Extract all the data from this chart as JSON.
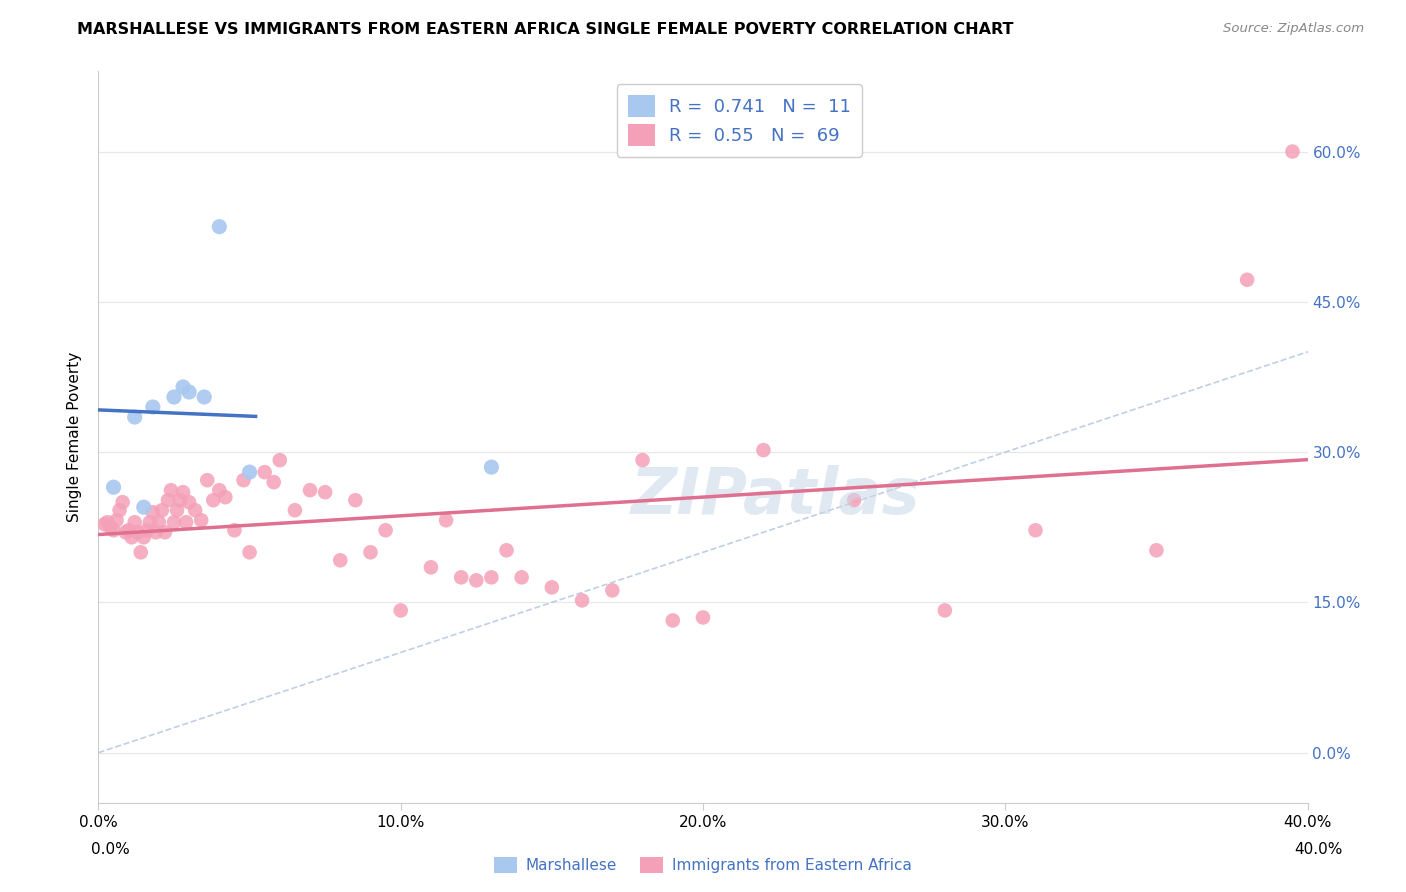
{
  "title": "MARSHALLESE VS IMMIGRANTS FROM EASTERN AFRICA SINGLE FEMALE POVERTY CORRELATION CHART",
  "source": "Source: ZipAtlas.com",
  "ylabel": "Single Female Poverty",
  "xlim": [
    0.0,
    0.4
  ],
  "ylim": [
    -0.05,
    0.68
  ],
  "yticks": [
    0.0,
    0.15,
    0.3,
    0.45,
    0.6
  ],
  "xticks": [
    0.0,
    0.1,
    0.2,
    0.3,
    0.4
  ],
  "marshallese_R": 0.741,
  "marshallese_N": 11,
  "eastern_africa_R": 0.55,
  "eastern_africa_N": 69,
  "marshallese_color": "#a8c8f0",
  "eastern_africa_color": "#f4a0b8",
  "marshallese_line_color": "#4472c4",
  "eastern_africa_line_color": "#e07090",
  "diagonal_color": "#b0c4de",
  "legend_text_color": "#4472c4",
  "right_axis_color": "#4472c4",
  "marshallese_x": [
    0.005,
    0.012,
    0.015,
    0.018,
    0.025,
    0.028,
    0.03,
    0.035,
    0.04,
    0.05,
    0.13
  ],
  "marshallese_y": [
    0.265,
    0.335,
    0.245,
    0.345,
    0.355,
    0.365,
    0.36,
    0.355,
    0.525,
    0.28,
    0.285
  ],
  "eastern_africa_x": [
    0.002,
    0.003,
    0.004,
    0.005,
    0.006,
    0.007,
    0.008,
    0.009,
    0.01,
    0.011,
    0.012,
    0.013,
    0.014,
    0.015,
    0.016,
    0.017,
    0.018,
    0.019,
    0.02,
    0.021,
    0.022,
    0.023,
    0.024,
    0.025,
    0.026,
    0.027,
    0.028,
    0.029,
    0.03,
    0.032,
    0.034,
    0.036,
    0.038,
    0.04,
    0.042,
    0.045,
    0.048,
    0.05,
    0.055,
    0.058,
    0.06,
    0.065,
    0.07,
    0.075,
    0.08,
    0.085,
    0.09,
    0.095,
    0.1,
    0.11,
    0.115,
    0.12,
    0.125,
    0.13,
    0.135,
    0.14,
    0.15,
    0.16,
    0.17,
    0.18,
    0.19,
    0.2,
    0.22,
    0.25,
    0.28,
    0.31,
    0.35,
    0.38,
    0.395
  ],
  "eastern_africa_y": [
    0.228,
    0.23,
    0.225,
    0.222,
    0.232,
    0.242,
    0.25,
    0.22,
    0.222,
    0.215,
    0.23,
    0.22,
    0.2,
    0.215,
    0.222,
    0.23,
    0.24,
    0.22,
    0.23,
    0.242,
    0.22,
    0.252,
    0.262,
    0.23,
    0.242,
    0.252,
    0.26,
    0.23,
    0.25,
    0.242,
    0.232,
    0.272,
    0.252,
    0.262,
    0.255,
    0.222,
    0.272,
    0.2,
    0.28,
    0.27,
    0.292,
    0.242,
    0.262,
    0.26,
    0.192,
    0.252,
    0.2,
    0.222,
    0.142,
    0.185,
    0.232,
    0.175,
    0.172,
    0.175,
    0.202,
    0.175,
    0.165,
    0.152,
    0.162,
    0.292,
    0.132,
    0.135,
    0.302,
    0.252,
    0.142,
    0.222,
    0.202,
    0.472,
    0.6
  ],
  "background_color": "#ffffff",
  "grid_color": "#e8e8e8"
}
